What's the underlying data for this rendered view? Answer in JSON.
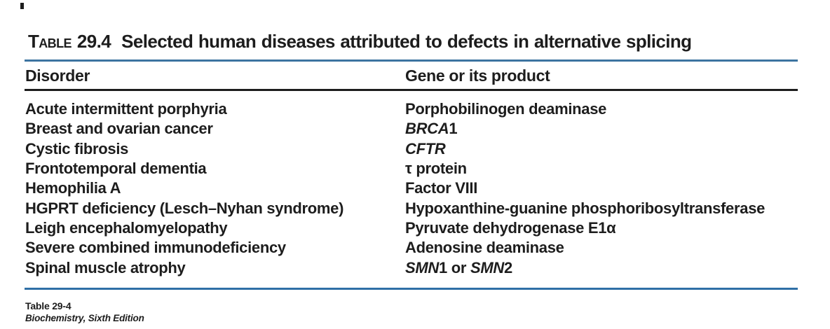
{
  "title": {
    "table_word": "Table",
    "number": "29.4",
    "text": "Selected human diseases attributed to defects in alternative splicing"
  },
  "columns": {
    "disorder": "Disorder",
    "gene": "Gene or its product"
  },
  "rows": [
    {
      "disorder": "Acute intermittent porphyria",
      "gene": [
        {
          "t": "Porphobilinogen deaminase"
        }
      ]
    },
    {
      "disorder": "Breast and ovarian cancer",
      "gene": [
        {
          "t": "BRCA",
          "i": true
        },
        {
          "t": "1"
        }
      ]
    },
    {
      "disorder": "Cystic fibrosis",
      "gene": [
        {
          "t": "CFTR",
          "i": true
        }
      ]
    },
    {
      "disorder": "Frontotemporal dementia",
      "gene": [
        {
          "t": "τ protein"
        }
      ]
    },
    {
      "disorder": "Hemophilia A",
      "gene": [
        {
          "t": "Factor VIII"
        }
      ]
    },
    {
      "disorder": "HGPRT deficiency (Lesch–Nyhan syndrome)",
      "gene": [
        {
          "t": "Hypoxanthine-guanine phosphoribosyltransferase"
        }
      ]
    },
    {
      "disorder": "Leigh encephalomyelopathy",
      "gene": [
        {
          "t": "Pyruvate dehydrogenase E1α"
        }
      ]
    },
    {
      "disorder": "Severe combined immunodeficiency",
      "gene": [
        {
          "t": "Adenosine deaminase"
        }
      ]
    },
    {
      "disorder": "Spinal muscle atrophy",
      "gene": [
        {
          "t": "SMN",
          "i": true
        },
        {
          "t": "1 or "
        },
        {
          "t": "SMN",
          "i": true
        },
        {
          "t": "2"
        }
      ]
    }
  ],
  "footer": {
    "table_ref": "Table 29-4",
    "source": "Biochemistry, Sixth Edition"
  },
  "colors": {
    "text": "#1d1d1d",
    "rule_blue_top": "#3c74a0",
    "rule_blue_bottom": "#2f6fa6",
    "rule_dark": "#1d1d1d"
  }
}
